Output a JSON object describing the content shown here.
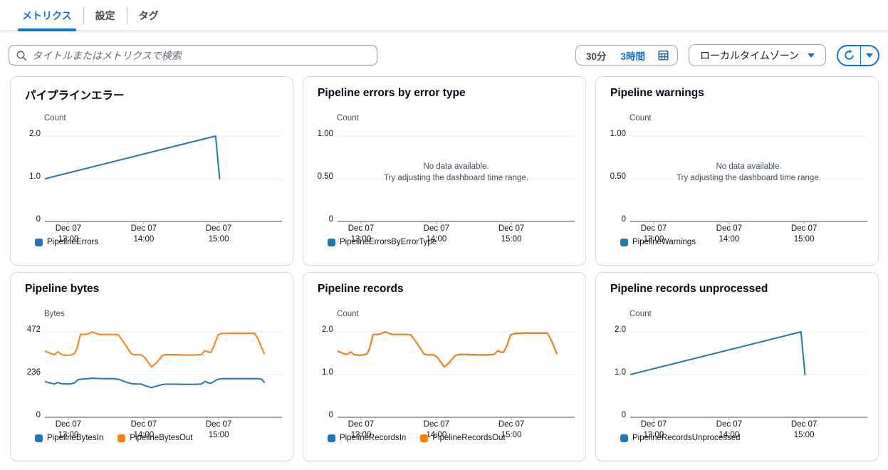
{
  "tabs": {
    "items": [
      {
        "label": "メトリクス",
        "active": true
      },
      {
        "label": "設定",
        "active": false
      },
      {
        "label": "タグ",
        "active": false
      }
    ]
  },
  "search": {
    "placeholder": "タイトルまたはメトリクスで検索",
    "value": ""
  },
  "controls": {
    "range_short": "30分",
    "range_long": "3時間",
    "timezone_label": "ローカルタイムゾーン"
  },
  "colors": {
    "accent": "#0972d3",
    "series_blue": "#1f77b4",
    "series_orange": "#ff7f0e",
    "gridline": "#e9ebed",
    "axis": "#9aa5b1"
  },
  "empty_state": {
    "line1": "No data available.",
    "line2": "Try adjusting the dashboard time range."
  },
  "chart_data": [
    {
      "type": "line",
      "title": "パイプラインエラー",
      "ylabel": "Count",
      "ymax": 2,
      "ylim": [
        0,
        2
      ],
      "yticks": [
        {
          "v": 2,
          "label": "2.0"
        },
        {
          "v": 1,
          "label": "1.0"
        },
        {
          "v": 0,
          "label": "0"
        }
      ],
      "xticks": [
        {
          "f": 0.099,
          "line1": "Dec 07",
          "line2": "13:00"
        },
        {
          "f": 0.417,
          "line1": "Dec 07",
          "line2": "14:00"
        },
        {
          "f": 0.733,
          "line1": "Dec 07",
          "line2": "15:00"
        }
      ],
      "series": [
        {
          "name": "PipelineErrors",
          "color": "#1f77b4",
          "points": [
            [
              0,
              1
            ],
            [
              0.72,
              2
            ],
            [
              0.737,
              1
            ]
          ]
        }
      ]
    },
    {
      "type": "line",
      "title": "Pipeline errors by error type",
      "ylabel": "Count",
      "ymax": 1,
      "ylim": [
        0,
        1
      ],
      "empty": true,
      "yticks": [
        {
          "v": 1,
          "label": "1.00"
        },
        {
          "v": 0.5,
          "label": "0.50"
        },
        {
          "v": 0,
          "label": "0"
        }
      ],
      "xticks": [
        {
          "f": 0.099,
          "line1": "Dec 07",
          "line2": "13:00"
        },
        {
          "f": 0.417,
          "line1": "Dec 07",
          "line2": "14:00"
        },
        {
          "f": 0.733,
          "line1": "Dec 07",
          "line2": "15:00"
        }
      ],
      "series": [
        {
          "name": "PipelineErrorsByErrorType",
          "color": "#1f77b4",
          "points": []
        }
      ]
    },
    {
      "type": "line",
      "title": "Pipeline warnings",
      "ylabel": "Count",
      "ymax": 1,
      "ylim": [
        0,
        1
      ],
      "empty": true,
      "yticks": [
        {
          "v": 1,
          "label": "1.00"
        },
        {
          "v": 0.5,
          "label": "0.50"
        },
        {
          "v": 0,
          "label": "0"
        }
      ],
      "xticks": [
        {
          "f": 0.099,
          "line1": "Dec 07",
          "line2": "13:00"
        },
        {
          "f": 0.417,
          "line1": "Dec 07",
          "line2": "14:00"
        },
        {
          "f": 0.733,
          "line1": "Dec 07",
          "line2": "15:00"
        }
      ],
      "series": [
        {
          "name": "PipelineWarnings",
          "color": "#1f77b4",
          "points": []
        }
      ]
    },
    {
      "type": "line",
      "title": "Pipeline bytes",
      "ylabel": "Bytes",
      "ymax": 472,
      "ylim": [
        0,
        472
      ],
      "yticks": [
        {
          "v": 472,
          "label": "472"
        },
        {
          "v": 236,
          "label": "236"
        },
        {
          "v": 0,
          "label": "0"
        }
      ],
      "xticks": [
        {
          "f": 0.099,
          "line1": "Dec 07",
          "line2": "13:00"
        },
        {
          "f": 0.417,
          "line1": "Dec 07",
          "line2": "14:00"
        },
        {
          "f": 0.733,
          "line1": "Dec 07",
          "line2": "15:00"
        }
      ],
      "series": [
        {
          "name": "PipelineBytesIn",
          "color": "#1f77b4",
          "points": [
            [
              0,
              198
            ],
            [
              0.02,
              190
            ],
            [
              0.04,
              184
            ],
            [
              0.055,
              192
            ],
            [
              0.07,
              186
            ],
            [
              0.09,
              184
            ],
            [
              0.11,
              185
            ],
            [
              0.125,
              190
            ],
            [
              0.14,
              208
            ],
            [
              0.16,
              212
            ],
            [
              0.18,
              213
            ],
            [
              0.2,
              216
            ],
            [
              0.23,
              214
            ],
            [
              0.26,
              213
            ],
            [
              0.29,
              213
            ],
            [
              0.31,
              210
            ],
            [
              0.34,
              196
            ],
            [
              0.365,
              186
            ],
            [
              0.38,
              184
            ],
            [
              0.405,
              184
            ],
            [
              0.42,
              176
            ],
            [
              0.45,
              164
            ],
            [
              0.47,
              172
            ],
            [
              0.495,
              181
            ],
            [
              0.51,
              183
            ],
            [
              0.55,
              183
            ],
            [
              0.59,
              182
            ],
            [
              0.63,
              182
            ],
            [
              0.66,
              184
            ],
            [
              0.675,
              198
            ],
            [
              0.69,
              190
            ],
            [
              0.7,
              188
            ],
            [
              0.715,
              200
            ],
            [
              0.73,
              210
            ],
            [
              0.745,
              213
            ],
            [
              0.78,
              213
            ],
            [
              0.82,
              213
            ],
            [
              0.86,
              213
            ],
            [
              0.885,
              213
            ],
            [
              0.9,
              213
            ],
            [
              0.915,
              210
            ],
            [
              0.925,
              194
            ]
          ]
        },
        {
          "name": "PipelineBytesOut",
          "color": "#ff7f0e",
          "points": [
            [
              0,
              366
            ],
            [
              0.02,
              355
            ],
            [
              0.04,
              346
            ],
            [
              0.055,
              362
            ],
            [
              0.07,
              347
            ],
            [
              0.09,
              342
            ],
            [
              0.11,
              344
            ],
            [
              0.125,
              352
            ],
            [
              0.135,
              380
            ],
            [
              0.15,
              458
            ],
            [
              0.165,
              458
            ],
            [
              0.18,
              460
            ],
            [
              0.2,
              472
            ],
            [
              0.215,
              464
            ],
            [
              0.23,
              458
            ],
            [
              0.26,
              458
            ],
            [
              0.29,
              458
            ],
            [
              0.31,
              456
            ],
            [
              0.34,
              400
            ],
            [
              0.365,
              350
            ],
            [
              0.38,
              345
            ],
            [
              0.405,
              345
            ],
            [
              0.42,
              332
            ],
            [
              0.45,
              278
            ],
            [
              0.47,
              300
            ],
            [
              0.495,
              340
            ],
            [
              0.51,
              346
            ],
            [
              0.55,
              346
            ],
            [
              0.59,
              344
            ],
            [
              0.63,
              344
            ],
            [
              0.66,
              346
            ],
            [
              0.675,
              368
            ],
            [
              0.69,
              360
            ],
            [
              0.7,
              358
            ],
            [
              0.715,
              400
            ],
            [
              0.73,
              455
            ],
            [
              0.745,
              463
            ],
            [
              0.78,
              464
            ],
            [
              0.82,
              464
            ],
            [
              0.86,
              464
            ],
            [
              0.885,
              464
            ],
            [
              0.9,
              430
            ],
            [
              0.925,
              352
            ]
          ]
        }
      ]
    },
    {
      "type": "line",
      "title": "Pipeline records",
      "ylabel": "Count",
      "ymax": 2,
      "ylim": [
        0,
        2
      ],
      "yticks": [
        {
          "v": 2,
          "label": "2.0"
        },
        {
          "v": 1,
          "label": "1.0"
        },
        {
          "v": 0,
          "label": "0"
        }
      ],
      "xticks": [
        {
          "f": 0.099,
          "line1": "Dec 07",
          "line2": "13:00"
        },
        {
          "f": 0.417,
          "line1": "Dec 07",
          "line2": "14:00"
        },
        {
          "f": 0.733,
          "line1": "Dec 07",
          "line2": "15:00"
        }
      ],
      "series": [
        {
          "name": "PipelineRecordsIn",
          "color": "#1f77b4",
          "points": [
            [
              0,
              1.55
            ],
            [
              0.02,
              1.5
            ],
            [
              0.04,
              1.47
            ],
            [
              0.055,
              1.53
            ],
            [
              0.07,
              1.47
            ],
            [
              0.09,
              1.45
            ],
            [
              0.11,
              1.46
            ],
            [
              0.125,
              1.49
            ],
            [
              0.135,
              1.61
            ],
            [
              0.15,
              1.94
            ],
            [
              0.165,
              1.94
            ],
            [
              0.18,
              1.95
            ],
            [
              0.2,
              2
            ],
            [
              0.215,
              1.97
            ],
            [
              0.23,
              1.94
            ],
            [
              0.26,
              1.94
            ],
            [
              0.29,
              1.94
            ],
            [
              0.31,
              1.93
            ],
            [
              0.34,
              1.69
            ],
            [
              0.365,
              1.48
            ],
            [
              0.38,
              1.46
            ],
            [
              0.405,
              1.46
            ],
            [
              0.42,
              1.41
            ],
            [
              0.45,
              1.18
            ],
            [
              0.47,
              1.27
            ],
            [
              0.495,
              1.44
            ],
            [
              0.51,
              1.47
            ],
            [
              0.55,
              1.47
            ],
            [
              0.59,
              1.46
            ],
            [
              0.63,
              1.46
            ],
            [
              0.66,
              1.47
            ],
            [
              0.675,
              1.56
            ],
            [
              0.69,
              1.52
            ],
            [
              0.7,
              1.52
            ],
            [
              0.715,
              1.69
            ],
            [
              0.73,
              1.93
            ],
            [
              0.745,
              1.96
            ],
            [
              0.78,
              1.97
            ],
            [
              0.82,
              1.97
            ],
            [
              0.86,
              1.97
            ],
            [
              0.885,
              1.97
            ],
            [
              0.9,
              1.82
            ],
            [
              0.925,
              1.49
            ]
          ]
        },
        {
          "name": "PipelineRecordsOut",
          "color": "#ff7f0e",
          "points": [
            [
              0,
              1.55
            ],
            [
              0.02,
              1.5
            ],
            [
              0.04,
              1.47
            ],
            [
              0.055,
              1.53
            ],
            [
              0.07,
              1.47
            ],
            [
              0.09,
              1.45
            ],
            [
              0.11,
              1.46
            ],
            [
              0.125,
              1.49
            ],
            [
              0.135,
              1.61
            ],
            [
              0.15,
              1.94
            ],
            [
              0.165,
              1.94
            ],
            [
              0.18,
              1.95
            ],
            [
              0.2,
              2
            ],
            [
              0.215,
              1.97
            ],
            [
              0.23,
              1.94
            ],
            [
              0.26,
              1.94
            ],
            [
              0.29,
              1.94
            ],
            [
              0.31,
              1.93
            ],
            [
              0.34,
              1.69
            ],
            [
              0.365,
              1.48
            ],
            [
              0.38,
              1.46
            ],
            [
              0.405,
              1.46
            ],
            [
              0.42,
              1.41
            ],
            [
              0.45,
              1.18
            ],
            [
              0.47,
              1.27
            ],
            [
              0.495,
              1.44
            ],
            [
              0.51,
              1.47
            ],
            [
              0.55,
              1.47
            ],
            [
              0.59,
              1.46
            ],
            [
              0.63,
              1.46
            ],
            [
              0.66,
              1.47
            ],
            [
              0.675,
              1.56
            ],
            [
              0.69,
              1.52
            ],
            [
              0.7,
              1.52
            ],
            [
              0.715,
              1.69
            ],
            [
              0.73,
              1.93
            ],
            [
              0.745,
              1.96
            ],
            [
              0.78,
              1.97
            ],
            [
              0.82,
              1.97
            ],
            [
              0.86,
              1.97
            ],
            [
              0.885,
              1.97
            ],
            [
              0.9,
              1.82
            ],
            [
              0.925,
              1.49
            ]
          ]
        }
      ]
    },
    {
      "type": "line",
      "title": "Pipeline records unprocessed",
      "ylabel": "Count",
      "ymax": 2,
      "ylim": [
        0,
        2
      ],
      "yticks": [
        {
          "v": 2,
          "label": "2.0"
        },
        {
          "v": 1,
          "label": "1.0"
        },
        {
          "v": 0,
          "label": "0"
        }
      ],
      "xticks": [
        {
          "f": 0.099,
          "line1": "Dec 07",
          "line2": "13:00"
        },
        {
          "f": 0.417,
          "line1": "Dec 07",
          "line2": "14:00"
        },
        {
          "f": 0.733,
          "line1": "Dec 07",
          "line2": "15:00"
        }
      ],
      "series": [
        {
          "name": "PipelineRecordsUnprocessed",
          "color": "#1f77b4",
          "points": [
            [
              0,
              1
            ],
            [
              0.72,
              2
            ],
            [
              0.737,
              1
            ]
          ]
        }
      ]
    }
  ]
}
